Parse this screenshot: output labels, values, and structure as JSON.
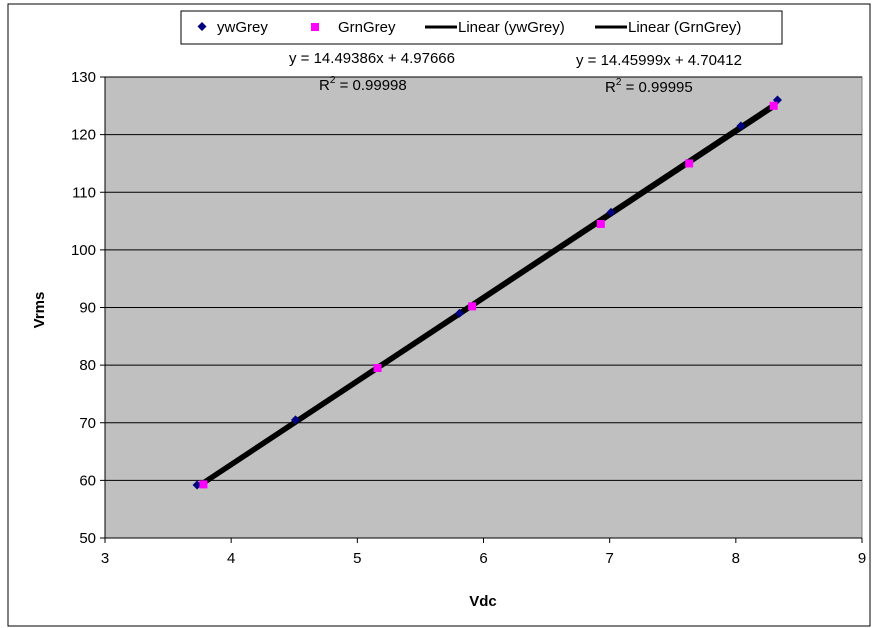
{
  "chart_data": {
    "type": "scatter",
    "title": "",
    "xlabel": "Vdc",
    "ylabel": "Vrms",
    "xlim": [
      3,
      9
    ],
    "ylim": [
      50,
      130
    ],
    "xticks": [
      3,
      4,
      5,
      6,
      7,
      8,
      9
    ],
    "yticks": [
      50,
      60,
      70,
      80,
      90,
      100,
      110,
      120,
      130
    ],
    "xtick_labels": [
      "3",
      "4",
      "5",
      "6",
      "7",
      "8",
      "9"
    ],
    "ytick_labels": [
      "50",
      "60",
      "70",
      "80",
      "90",
      "100",
      "110",
      "120",
      "130"
    ],
    "grid": "horizontal",
    "legend_position": "top",
    "plot_background": "#c0c0c0",
    "series": [
      {
        "name": "ywGrey",
        "marker": "diamond",
        "color": "#000080",
        "x": [
          3.73,
          4.51,
          5.81,
          7.01,
          8.04,
          8.33
        ],
        "y": [
          59.2,
          70.5,
          89.0,
          106.5,
          121.5,
          126.0
        ]
      },
      {
        "name": "GrnGrey",
        "marker": "square",
        "color": "#ff00ff",
        "x": [
          3.78,
          5.16,
          5.91,
          6.93,
          7.63,
          8.3
        ],
        "y": [
          59.3,
          79.5,
          90.2,
          104.5,
          115.0,
          125.0
        ]
      }
    ],
    "trendlines": [
      {
        "name": "Linear (ywGrey)",
        "color": "#000000",
        "slope": 14.49386,
        "intercept": 4.97666,
        "x_range": [
          3.73,
          8.33
        ],
        "equation": "y = 14.49386x + 4.97666",
        "r2_prefix": "R",
        "r2_exp": "2",
        "r2_value": " = 0.99998"
      },
      {
        "name": "Linear (GrnGrey)",
        "color": "#000000",
        "slope": 14.45999,
        "intercept": 4.70412,
        "x_range": [
          3.78,
          8.3
        ],
        "equation": "y = 14.45999x + 4.70412",
        "r2_prefix": "R",
        "r2_exp": "2",
        "r2_value": " = 0.99995"
      }
    ]
  }
}
